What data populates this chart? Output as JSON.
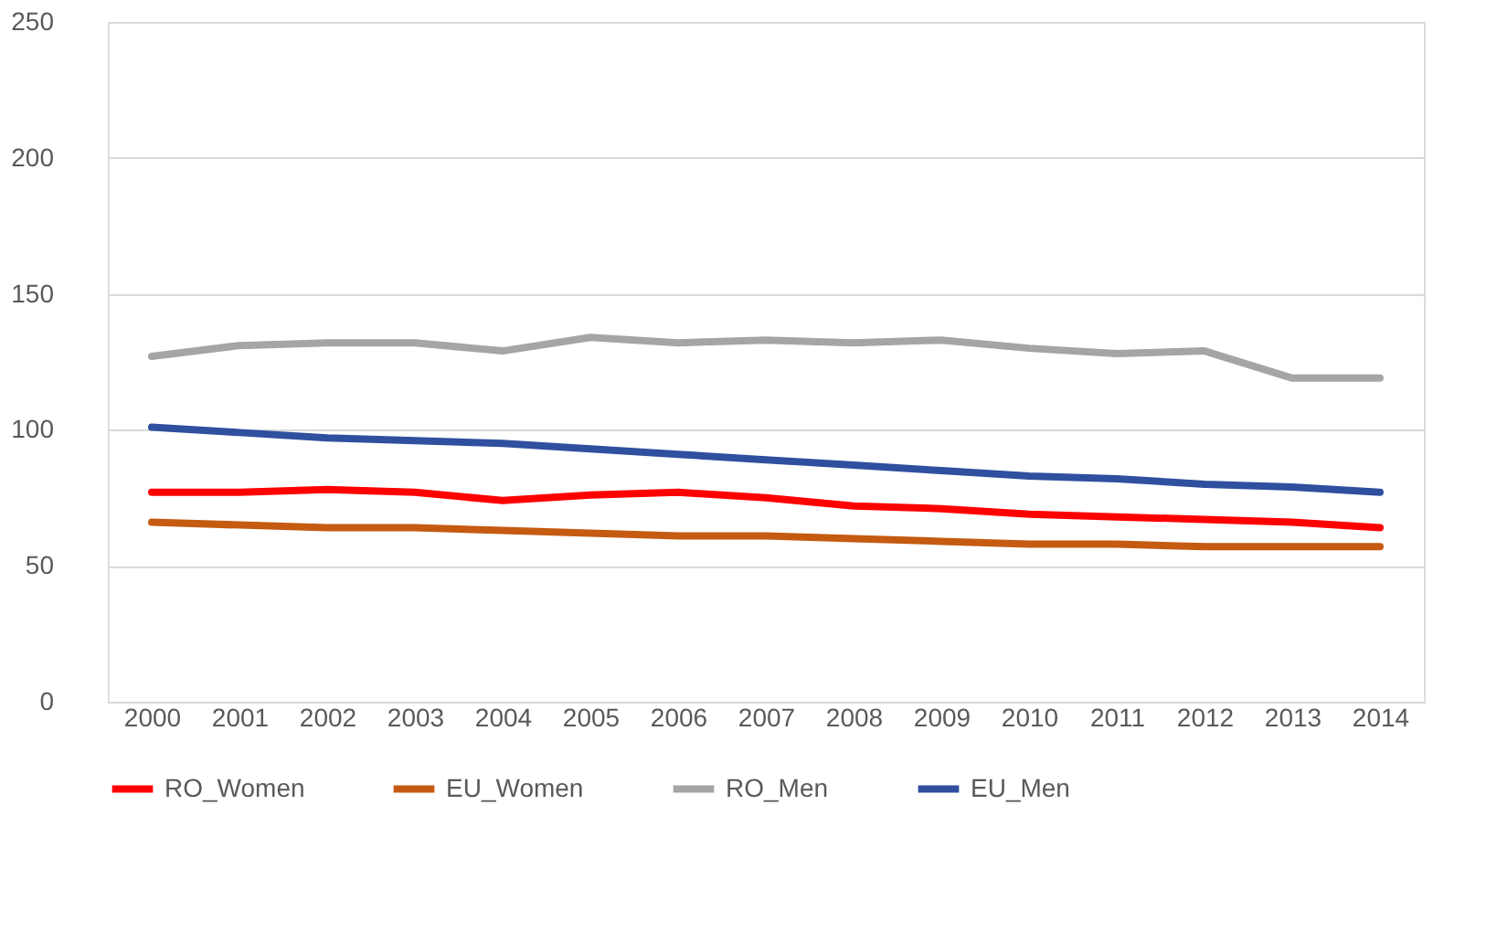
{
  "chart_data": {
    "type": "line",
    "categories": [
      "2000",
      "2001",
      "2002",
      "2003",
      "2004",
      "2005",
      "2006",
      "2007",
      "2008",
      "2009",
      "2010",
      "2011",
      "2012",
      "2013",
      "2014"
    ],
    "series": [
      {
        "name": "RO_Women",
        "color": "#ff0000",
        "values": [
          77,
          77,
          78,
          77,
          74,
          76,
          77,
          75,
          72,
          71,
          69,
          68,
          67,
          66,
          64
        ]
      },
      {
        "name": "EU_Women",
        "color": "#c55a11",
        "values": [
          66,
          65,
          64,
          64,
          63,
          62,
          61,
          61,
          60,
          59,
          58,
          58,
          57,
          57,
          57
        ]
      },
      {
        "name": "RO_Men",
        "color": "#a5a5a5",
        "values": [
          127,
          131,
          132,
          132,
          129,
          134,
          132,
          133,
          132,
          133,
          130,
          128,
          129,
          119,
          119
        ]
      },
      {
        "name": "EU_Men",
        "color": "#2f4f9f",
        "values": [
          101,
          99,
          97,
          96,
          95,
          93,
          91,
          89,
          87,
          85,
          83,
          82,
          80,
          79,
          77
        ]
      }
    ],
    "ylim": [
      0,
      250
    ],
    "yticks": [
      0,
      50,
      100,
      150,
      200,
      250
    ],
    "grid": "y",
    "legend": "bottom",
    "marker": "none",
    "line_style": "solid"
  }
}
